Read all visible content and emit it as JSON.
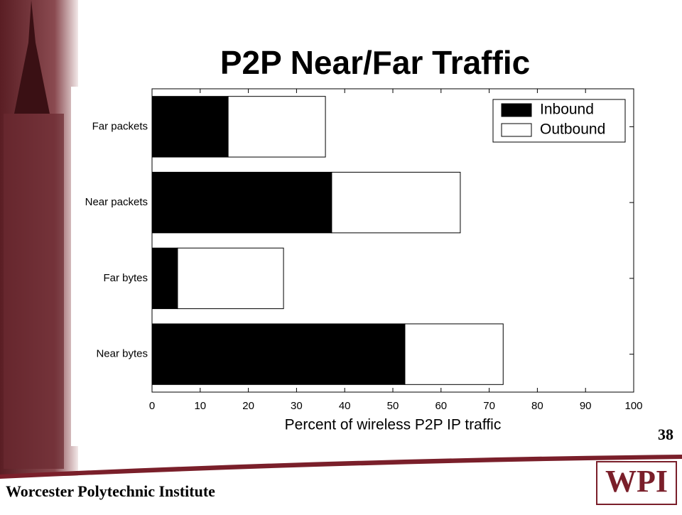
{
  "slide": {
    "title": "P2P Near/Far Traffic",
    "page_number": "38",
    "footer": "Worcester Polytechnic Institute",
    "logo": "WPI"
  },
  "chart_data": {
    "type": "bar",
    "orientation": "horizontal",
    "stacked": true,
    "categories": [
      "Far packets",
      "Near packets",
      "Far bytes",
      "Near bytes"
    ],
    "series": [
      {
        "name": "Inbound",
        "color": "#000000",
        "values": [
          15.8,
          37.3,
          5.3,
          52.5
        ]
      },
      {
        "name": "Outbound",
        "color": "#ffffff",
        "values": [
          20.2,
          26.7,
          22.0,
          20.4
        ]
      }
    ],
    "xlim": [
      0,
      100
    ],
    "xticks": [
      0,
      10,
      20,
      30,
      40,
      50,
      60,
      70,
      80,
      90,
      100
    ],
    "xlabel": "Percent of wireless P2P IP traffic",
    "legend": "upper right"
  }
}
